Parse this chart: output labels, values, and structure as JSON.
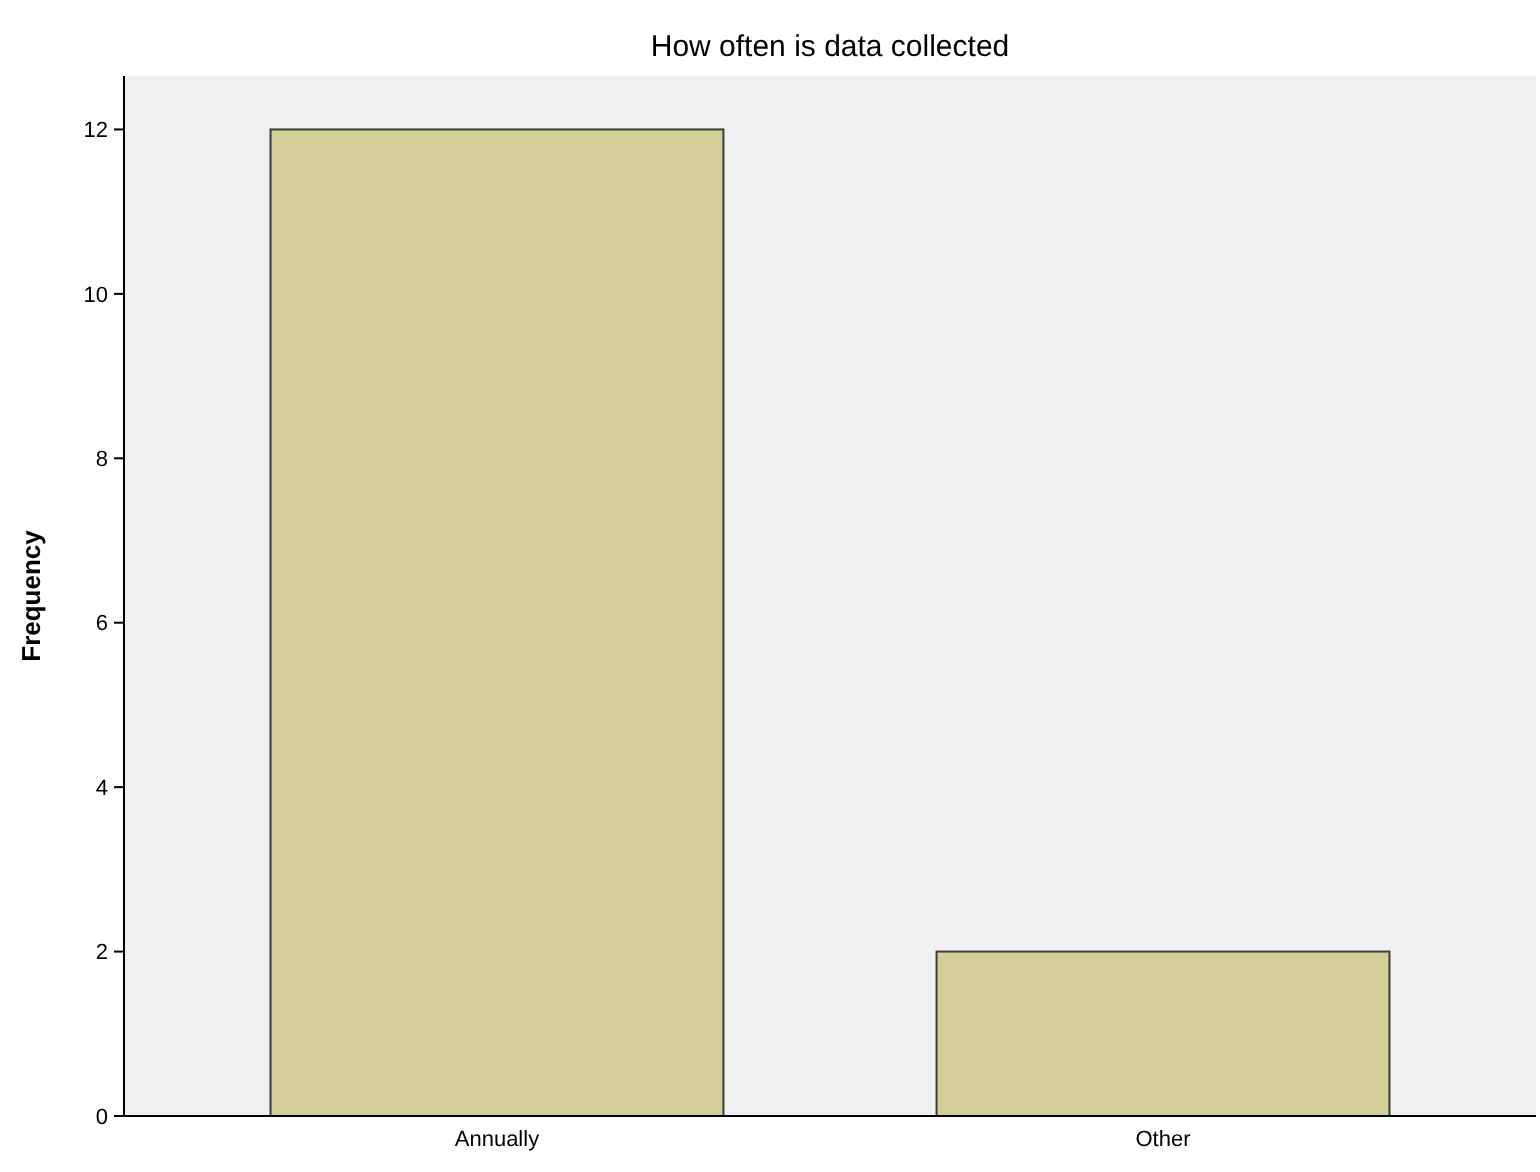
{
  "chart_data": {
    "type": "bar",
    "title": "How often is data collected",
    "ylabel": "Frequency",
    "categories": [
      "Annually",
      "Other"
    ],
    "values": [
      12,
      2
    ],
    "color": "#d3ce97",
    "ylim": [
      0,
      12.65
    ],
    "yticks": [
      0,
      2,
      4,
      6,
      8,
      10,
      12
    ],
    "grid": false
  }
}
